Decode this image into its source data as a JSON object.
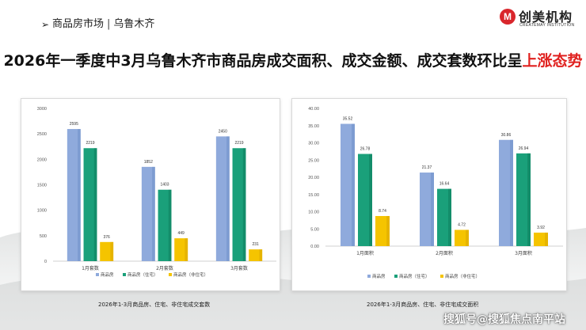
{
  "header": {
    "arrow": "➢",
    "section": "商品房市场",
    "separator": "|",
    "city": "乌鲁木齐"
  },
  "logo": {
    "mark": "M",
    "name_cn": "创美机构",
    "name_en": "CREATEMAY INSTITUTION"
  },
  "title": {
    "main": "2026年一季度中3月乌鲁木齐市商品房成交面积、成交金额、成交套数环比呈",
    "highlight": "上涨态势"
  },
  "colors": {
    "series_1": "#8faadc",
    "series_2": "#1aa07a",
    "series_3": "#f5c400",
    "title_highlight": "#e0211f"
  },
  "chart_data": [
    {
      "type": "bar",
      "caption": "2026年1-3月商品房、住宅、非住宅成交套数",
      "categories": [
        "1月套数",
        "2月套数",
        "3月套数"
      ],
      "series": [
        {
          "name": "商品房",
          "values": [
            2595,
            1852,
            2450
          ],
          "labels": [
            "2595",
            "1852",
            "2450"
          ]
        },
        {
          "name": "商品房（住宅）",
          "values": [
            2219,
            1403,
            2219
          ],
          "labels": [
            "2219",
            "1403",
            "2219"
          ]
        },
        {
          "name": "商品房（非住宅）",
          "values": [
            376,
            449,
            231
          ],
          "labels": [
            "376",
            "449",
            "231"
          ]
        }
      ],
      "ylim": [
        0,
        3000
      ],
      "yticks": [
        "0",
        "500",
        "1000",
        "1500",
        "2000",
        "2500",
        "3000"
      ],
      "grid": false,
      "legend": "bottom"
    },
    {
      "type": "bar",
      "caption": "2026年1-3月商品房、住宅、非住宅成交面积",
      "categories": [
        "1月面积",
        "2月面积",
        "3月面积"
      ],
      "series": [
        {
          "name": "商品房",
          "values": [
            35.52,
            21.37,
            30.86
          ],
          "labels": [
            "35.52",
            "21.37",
            "30.86"
          ]
        },
        {
          "name": "商品房（住宅）",
          "values": [
            26.78,
            16.64,
            26.94
          ],
          "labels": [
            "26.78",
            "16.64",
            "26.94"
          ]
        },
        {
          "name": "商品房（非住宅）",
          "values": [
            8.74,
            4.72,
            3.92
          ],
          "labels": [
            "8.74",
            "4.72",
            "3.92"
          ]
        }
      ],
      "ylim": [
        0,
        40
      ],
      "yticks": [
        "0.00",
        "5.00",
        "10.00",
        "15.00",
        "20.00",
        "25.00",
        "30.00",
        "35.00",
        "40.00"
      ],
      "grid": false,
      "legend": "bottom"
    }
  ],
  "watermark": "搜狐号@搜狐焦点南平站"
}
